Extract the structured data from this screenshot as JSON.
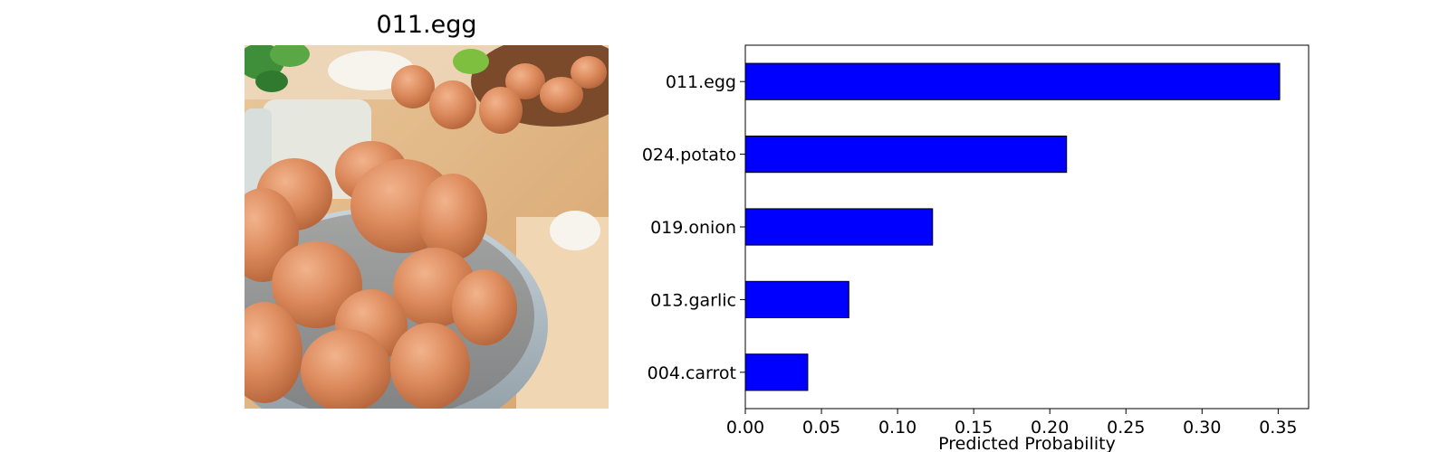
{
  "image_panel": {
    "title": "011.egg",
    "photo_subject": "bowl of brown eggs on a wooden kitchen table"
  },
  "chart_data": {
    "type": "bar",
    "orientation": "horizontal",
    "categories": [
      "011.egg",
      "024.potato",
      "019.onion",
      "013.garlic",
      "004.carrot"
    ],
    "values": [
      0.351,
      0.211,
      0.123,
      0.068,
      0.041
    ],
    "title": "",
    "xlabel": "Predicted Probability",
    "ylabel": "",
    "xlim": [
      0,
      0.37
    ],
    "xticks": [
      "0.00",
      "0.05",
      "0.10",
      "0.15",
      "0.20",
      "0.25",
      "0.30",
      "0.35"
    ],
    "xtick_values": [
      0,
      0.05,
      0.1,
      0.15,
      0.2,
      0.25,
      0.3,
      0.35
    ],
    "grid": false,
    "bar_color": "#0000ff",
    "edge_color": "#000000"
  }
}
